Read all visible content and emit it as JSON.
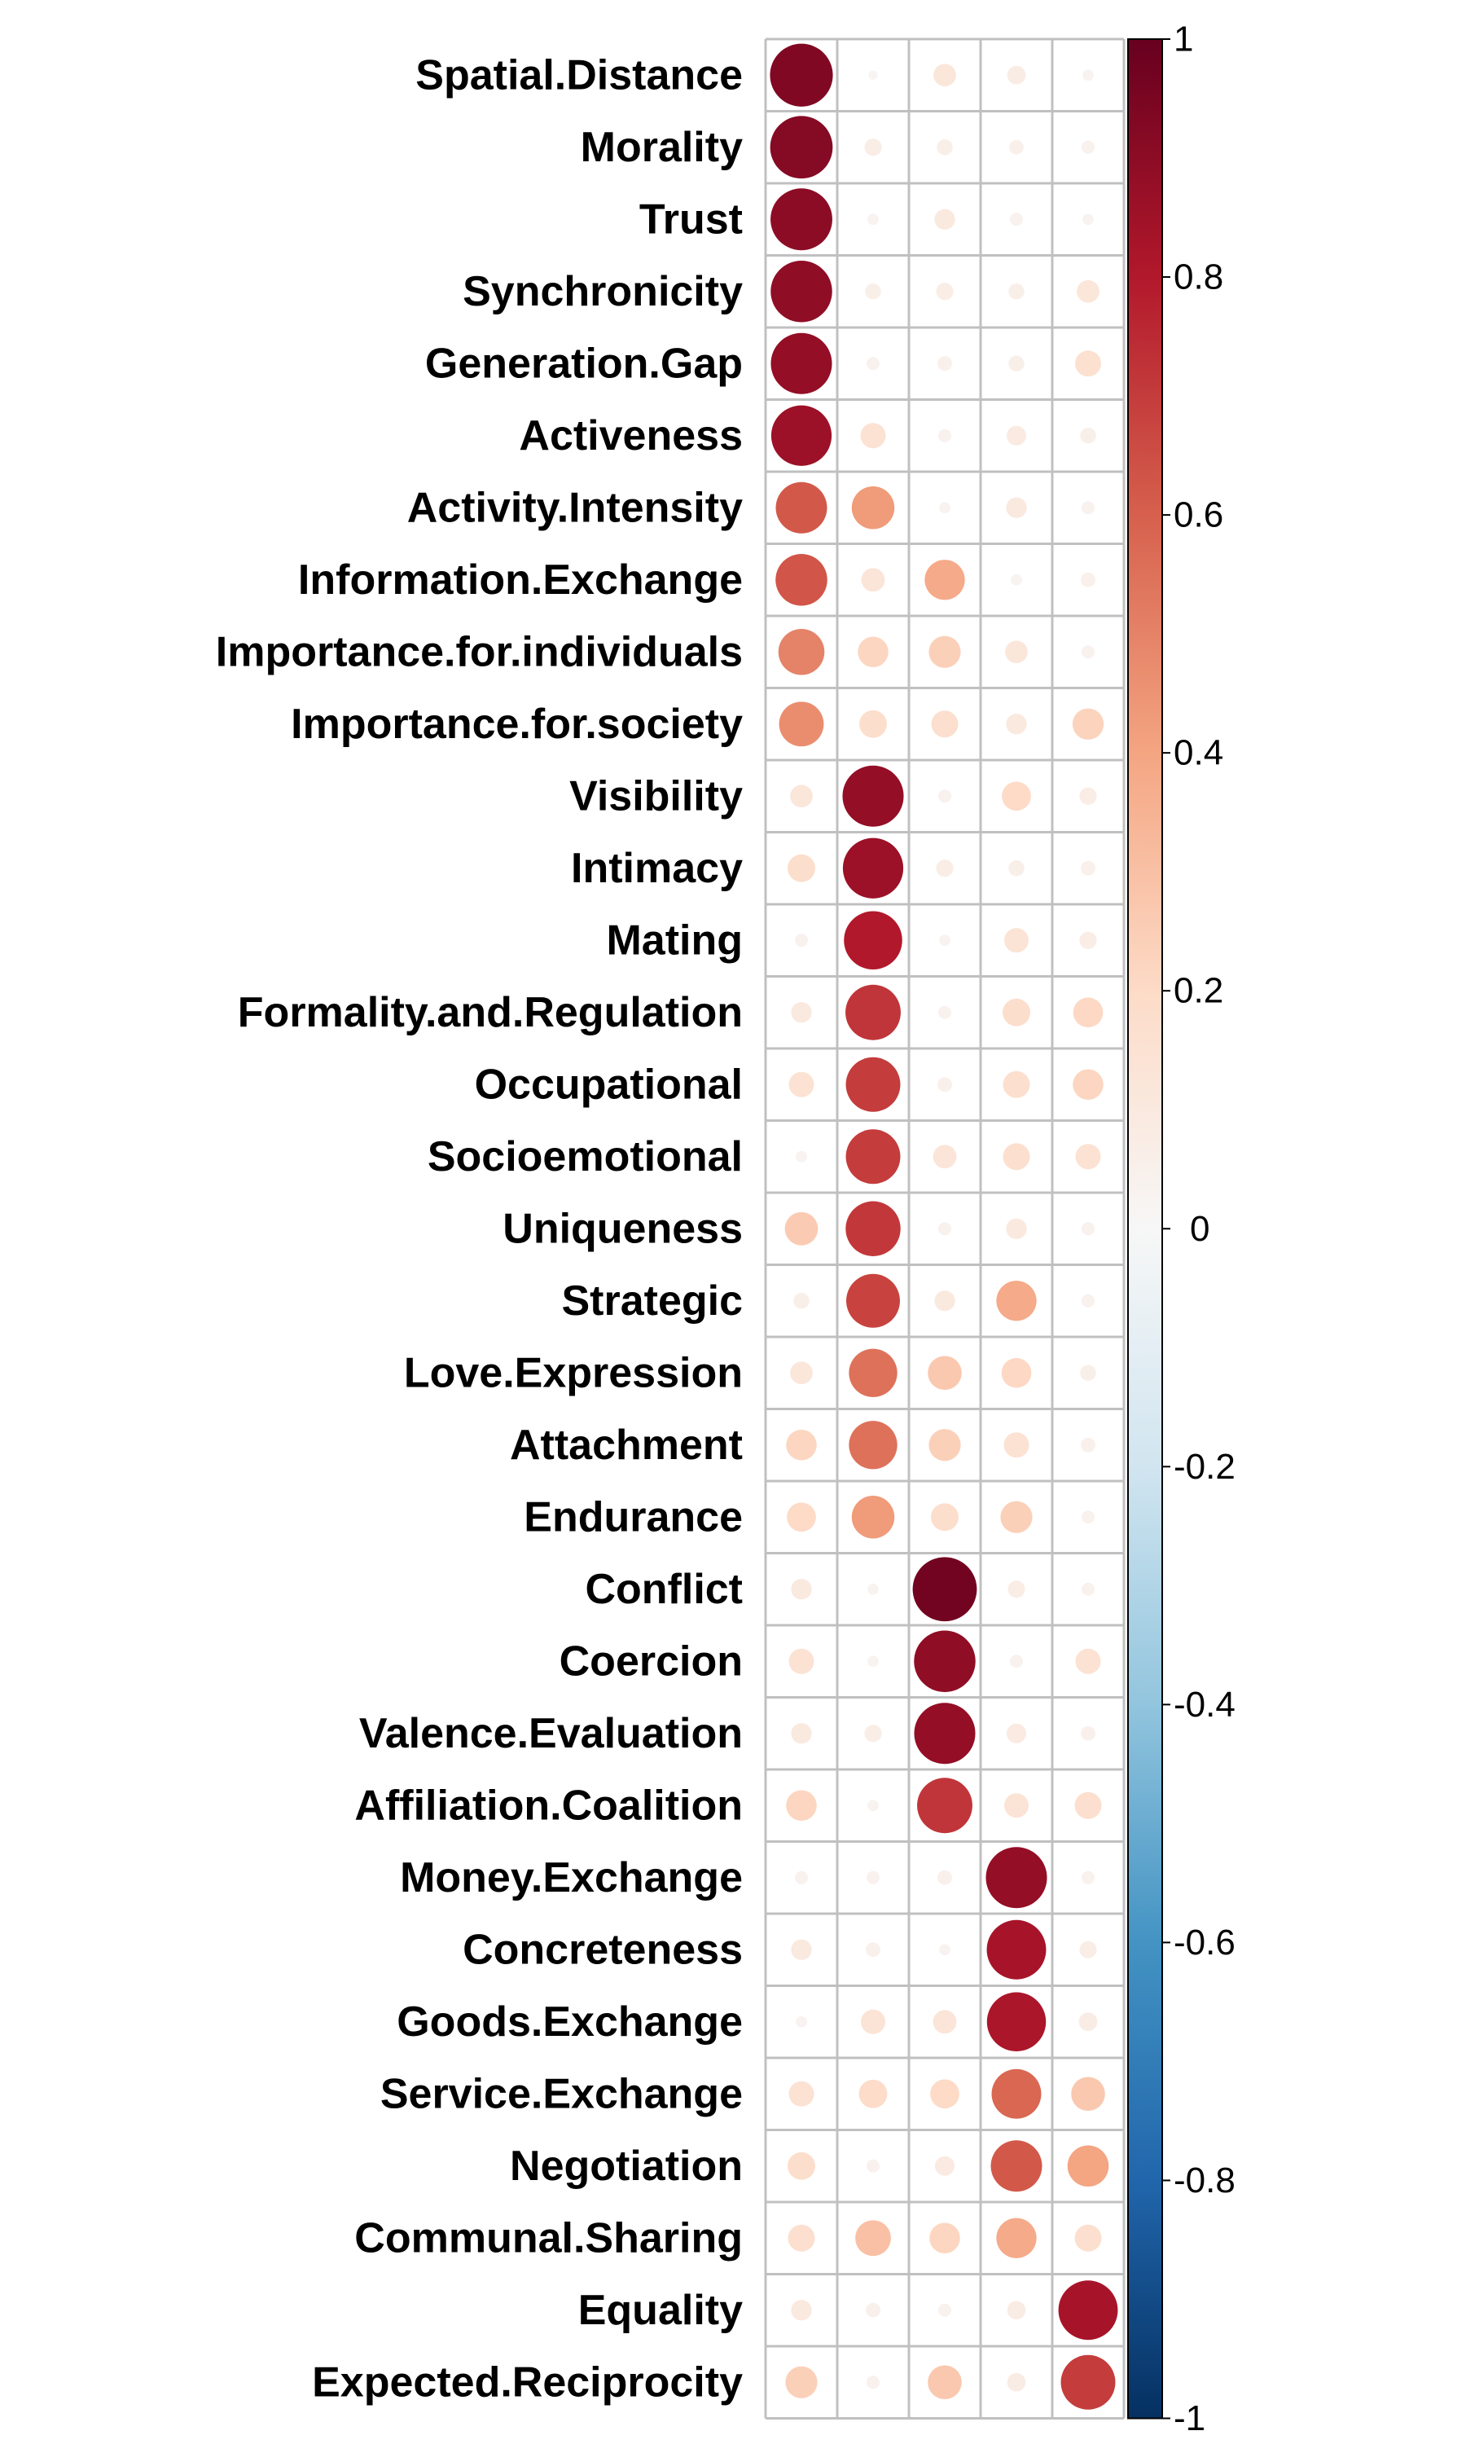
{
  "chart_data": {
    "type": "heatmap",
    "title": "",
    "xlabel": "",
    "ylabel": "",
    "columns": [
      "",
      "",
      "",
      "",
      ""
    ],
    "rows": [
      "Spatial.Distance",
      "Morality",
      "Trust",
      "Synchronicity",
      "Generation.Gap",
      "Activeness",
      "Activity.Intensity",
      "Information.Exchange",
      "Importance.for.individuals",
      "Importance.for.society",
      "Visibility",
      "Intimacy",
      "Mating",
      "Formality.and.Regulation",
      "Occupational",
      "Socioemotional",
      "Uniqueness",
      "Strategic",
      "Love.Expression",
      "Attachment",
      "Endurance",
      "Conflict",
      "Coercion",
      "Valence.Evaluation",
      "Affiliation.Coalition",
      "Money.Exchange",
      "Concreteness",
      "Goods.Exchange",
      "Service.Exchange",
      "Negotiation",
      "Communal.Sharing",
      "Equality",
      "Expected.Reciprocity"
    ],
    "values": [
      [
        0.93,
        0.02,
        0.12,
        0.08,
        0.03
      ],
      [
        0.92,
        0.07,
        0.06,
        0.05,
        0.04
      ],
      [
        0.9,
        0.03,
        0.1,
        0.04,
        0.03
      ],
      [
        0.89,
        0.06,
        0.07,
        0.06,
        0.12
      ],
      [
        0.88,
        0.04,
        0.05,
        0.06,
        0.16
      ],
      [
        0.86,
        0.15,
        0.04,
        0.09,
        0.06
      ],
      [
        0.62,
        0.43,
        0.03,
        0.1,
        0.04
      ],
      [
        0.63,
        0.13,
        0.38,
        0.03,
        0.05
      ],
      [
        0.5,
        0.22,
        0.24,
        0.12,
        0.04
      ],
      [
        0.47,
        0.18,
        0.17,
        0.1,
        0.23
      ],
      [
        0.12,
        0.88,
        0.04,
        0.2,
        0.07
      ],
      [
        0.18,
        0.86,
        0.07,
        0.06,
        0.05
      ],
      [
        0.04,
        0.8,
        0.03,
        0.14,
        0.07
      ],
      [
        0.1,
        0.72,
        0.04,
        0.18,
        0.21
      ],
      [
        0.15,
        0.7,
        0.05,
        0.17,
        0.22
      ],
      [
        0.03,
        0.7,
        0.13,
        0.17,
        0.15
      ],
      [
        0.26,
        0.71,
        0.04,
        0.1,
        0.04
      ],
      [
        0.06,
        0.68,
        0.1,
        0.38,
        0.04
      ],
      [
        0.12,
        0.55,
        0.27,
        0.21,
        0.06
      ],
      [
        0.22,
        0.55,
        0.24,
        0.15,
        0.05
      ],
      [
        0.2,
        0.43,
        0.18,
        0.24,
        0.04
      ],
      [
        0.1,
        0.03,
        0.97,
        0.07,
        0.04
      ],
      [
        0.15,
        0.03,
        0.89,
        0.04,
        0.15
      ],
      [
        0.1,
        0.07,
        0.88,
        0.09,
        0.05
      ],
      [
        0.22,
        0.03,
        0.72,
        0.14,
        0.17
      ],
      [
        0.04,
        0.04,
        0.05,
        0.88,
        0.04
      ],
      [
        0.1,
        0.05,
        0.03,
        0.83,
        0.07
      ],
      [
        0.03,
        0.14,
        0.13,
        0.82,
        0.08
      ],
      [
        0.15,
        0.19,
        0.2,
        0.58,
        0.27
      ],
      [
        0.18,
        0.04,
        0.09,
        0.62,
        0.4
      ],
      [
        0.17,
        0.3,
        0.22,
        0.38,
        0.17
      ],
      [
        0.1,
        0.05,
        0.04,
        0.08,
        0.83
      ],
      [
        0.24,
        0.04,
        0.27,
        0.08,
        0.7
      ]
    ],
    "colorbar": {
      "range": [
        -1,
        1
      ],
      "ticks": [
        "1",
        "0.8",
        "0.6",
        "0.4",
        "0.2",
        "0",
        "-0.2",
        "-0.4",
        "-0.6",
        "-0.8",
        "-1"
      ],
      "tick_values": [
        1,
        0.8,
        0.6,
        0.4,
        0.2,
        0,
        -0.2,
        -0.4,
        -0.6,
        -0.8,
        -1
      ],
      "colors": [
        "#67001F",
        "#B2182B",
        "#D6604D",
        "#F4A582",
        "#FDDBC7",
        "#F7F7F7",
        "#D1E5F0",
        "#92C5DE",
        "#4393C3",
        "#2166AC",
        "#053061"
      ],
      "placement": "right"
    },
    "grid": true
  }
}
